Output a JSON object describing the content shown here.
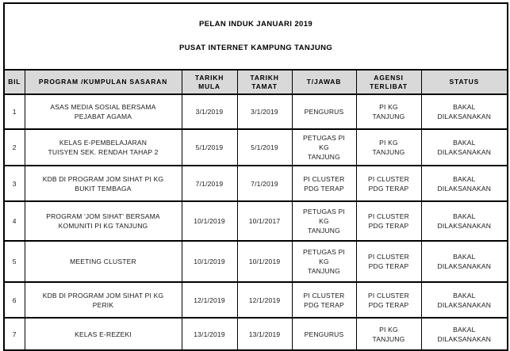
{
  "document": {
    "title_line1": "PELAN INDUK JANUARI 2019",
    "title_line2": "PUSAT INTERNET KAMPUNG TANJUNG"
  },
  "table": {
    "headers": [
      "BIL",
      "PROGRAM /KUMPULAN SASARAN",
      "TARIKH\nMULA",
      "TARIKH\nTAMAT",
      "T/JAWAB",
      "AGENSI\nTERLIBAT",
      "STATUS"
    ],
    "column_keys": [
      "bil",
      "program",
      "tarikh-mula",
      "tarikh-tamat",
      "t-jawab",
      "agensi-terlibat",
      "status"
    ],
    "rows": [
      [
        "1",
        "ASAS MEDIA SOSIAL BERSAMA\nPEJABAT AGAMA",
        "3/1/2019",
        "3/1/2019",
        "PENGURUS",
        "PI KG\nTANJUNG",
        "BAKAL\nDILAKSANAKAN"
      ],
      [
        "2",
        "KELAS E-PEMBELAJARAN\nTUISYEN SEK. RENDAH TAHAP 2",
        "5/1/2019",
        "5/1/2019",
        "PETUGAS PI\nKG\nTANJUNG",
        "PI KG\nTANJUNG",
        "BAKAL\nDILAKSANAKAN"
      ],
      [
        "3",
        "KDB DI PROGRAM JOM SIHAT PI KG\nBUKIT TEMBAGA",
        "7/1/2019",
        "7/1/2019",
        "PI CLUSTER\nPDG TERAP",
        "PI CLUSTER\nPDG TERAP",
        "BAKAL\nDILAKSANAKAN"
      ],
      [
        "4",
        "PROGRAM 'JOM SIHAT' BERSAMA\nKOMUNITI PI KG TANJUNG",
        "10/1/2019",
        "10/1/2017",
        "PETUGAS PI\nKG\nTANJUNG",
        "PI CLUSTER\nPDG TERAP",
        "BAKAL\nDILAKSANAKAN"
      ],
      [
        "5",
        "MEETING CLUSTER",
        "10/1/2019",
        "10/1/2019",
        "PETUGAS PI\nKG\nTANJUNG",
        "PI CLUSTER\nPDG TERAP",
        "BAKAL\nDILAKSANAKAN"
      ],
      [
        "6",
        "KDB DI PROGRAM JOM SIHAT PI KG\nPERIK",
        "12/1/2019",
        "12/1/2019",
        "PI CLUSTER\nPDG TERAP",
        "PI CLUSTER\nPDG TERAP",
        "BAKAL\nDILAKSANAKAN"
      ],
      [
        "7",
        "KELAS E-REZEKI",
        "13/1/2019",
        "13/1/2019",
        "PENGURUS",
        "PI KG\nTANJUNG",
        "BAKAL\nDILAKSANAKAN"
      ]
    ]
  },
  "colors": {
    "header_bg": "#d9d9d9",
    "border": "#000000",
    "page_bg": "#ffffff"
  }
}
